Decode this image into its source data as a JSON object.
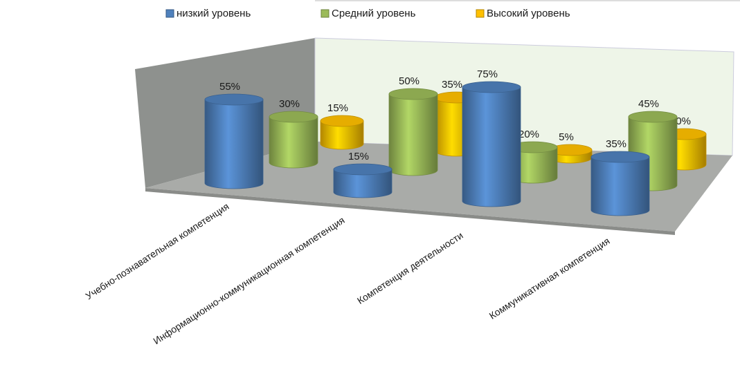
{
  "chart_data": {
    "type": "cylinder3d",
    "categories": [
      "Учебно-познавательная компетенция",
      "Информационно-коммуникационная компетенция",
      "Компетенция деятельности",
      "Коммуникативная компетенция"
    ],
    "series": [
      {
        "name": "низкий уровень",
        "color": "#4f81bd",
        "values": [
          55,
          15,
          75,
          35
        ],
        "value_labels": [
          "55%",
          "15%",
          "75%",
          "35%"
        ]
      },
      {
        "name": "Средний уровень",
        "color": "#9bbb59",
        "values": [
          30,
          50,
          20,
          45
        ],
        "value_labels": [
          "30%",
          "50%",
          "20%",
          "45%"
        ]
      },
      {
        "name": "Высокий уровень",
        "color": "#ffc000",
        "values": [
          15,
          35,
          5,
          20
        ],
        "value_labels": [
          "15%",
          "35%",
          "5%",
          "20%"
        ]
      }
    ],
    "legend": "top"
  }
}
